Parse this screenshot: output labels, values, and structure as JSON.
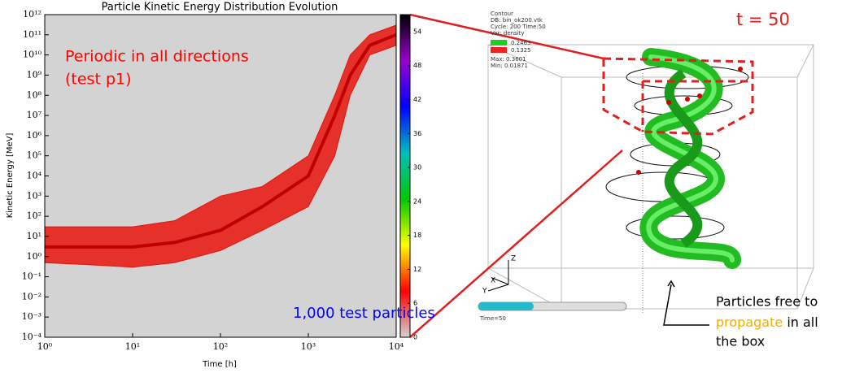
{
  "chart_data": {
    "type": "density",
    "title": "Particle Kinetic Energy Distribution Evolution",
    "x_label": "Time [h]",
    "y_label": "Kinetic Energy [MeV]",
    "log_x": true,
    "log_y": true,
    "xlim": [
      1,
      10000
    ],
    "ylim": [
      0.0001,
      1000000000000
    ],
    "xticks": [
      {
        "value": 1,
        "label": "10⁰"
      },
      {
        "value": 10,
        "label": "10¹"
      },
      {
        "value": 100,
        "label": "10²"
      },
      {
        "value": 1000,
        "label": "10³"
      },
      {
        "value": 10000,
        "label": "10⁴"
      }
    ],
    "yticks": [
      {
        "value": 0.0001,
        "label": "10⁻⁴"
      },
      {
        "value": 0.001,
        "label": "10⁻³"
      },
      {
        "value": 0.01,
        "label": "10⁻²"
      },
      {
        "value": 0.1,
        "label": "10⁻¹"
      },
      {
        "value": 1,
        "label": "10⁰"
      },
      {
        "value": 10,
        "label": "10¹"
      },
      {
        "value": 100,
        "label": "10²"
      },
      {
        "value": 1000,
        "label": "10³"
      },
      {
        "value": 10000,
        "label": "10⁴"
      },
      {
        "value": 100000,
        "label": "10⁵"
      },
      {
        "value": 1000000,
        "label": "10⁶"
      },
      {
        "value": 10000000,
        "label": "10⁷"
      },
      {
        "value": 100000000,
        "label": "10⁸"
      },
      {
        "value": 1000000000,
        "label": "10⁹"
      },
      {
        "value": 10000000000,
        "label": "10¹⁰"
      },
      {
        "value": 100000000000,
        "label": "10¹¹"
      },
      {
        "value": 1000000000000,
        "label": "10¹²"
      }
    ],
    "band": {
      "x": [
        1,
        3,
        10,
        30,
        100,
        300,
        1000,
        2000,
        3000,
        5000,
        10000
      ],
      "low": [
        0.5,
        0.4,
        0.3,
        0.5,
        2,
        20,
        300,
        100000,
        100000000,
        10000000000,
        30000000000
      ],
      "high": [
        30,
        30,
        30,
        60,
        1000,
        3000,
        100000,
        100000000,
        10000000000,
        100000000000,
        300000000000
      ],
      "core": [
        3,
        3,
        3,
        5,
        20,
        300,
        10000,
        10000000,
        1000000000,
        30000000000,
        100000000000
      ],
      "color": "#e8140a",
      "core_color": "#c00000"
    },
    "background": "#d3d3d3",
    "colorbar": {
      "clim": [
        0,
        57
      ],
      "ticks": [
        0,
        6,
        12,
        18,
        24,
        30,
        36,
        42,
        48,
        54
      ],
      "colormap": [
        "#d3d3d3",
        "#ff0000",
        "#ffff00",
        "#00c800",
        "#00bfbf",
        "#0000ff",
        "#9900cc",
        "#000000"
      ]
    },
    "annotations": [
      {
        "text": "Periodic in all directions",
        "color": "#ff0000"
      },
      {
        "text": "(test p1)",
        "color": "#ff0000"
      },
      {
        "text": "1,000 test particles",
        "color": "#0000ff"
      }
    ]
  },
  "visualization": {
    "legend": [
      "Contour",
      "DB: bin_ok200.vtk",
      "Cycle: 200    Time:50",
      "Var: density"
    ],
    "levels": [
      "0.2463",
      "0.1325"
    ],
    "max": "Max: 0.3601",
    "min": "Min: 0.01871",
    "time_label": "t = 50",
    "slider": "Time=50",
    "axes": [
      "X",
      "Y",
      "Z"
    ],
    "note": [
      "Particles free to",
      "propagate",
      "in all",
      "the box"
    ]
  }
}
